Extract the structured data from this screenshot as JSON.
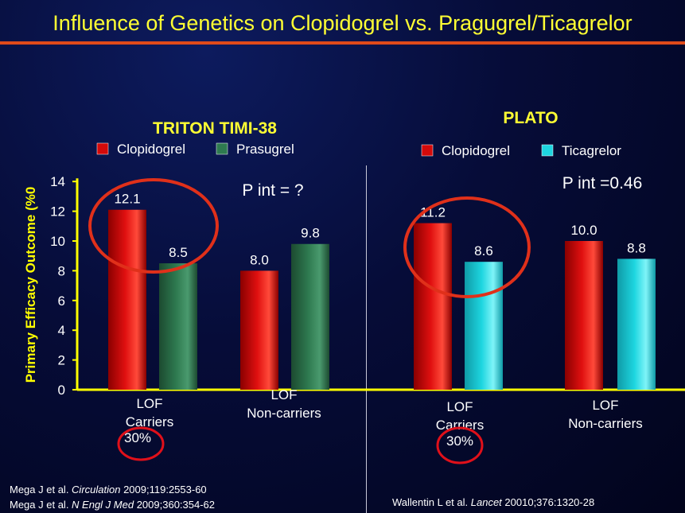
{
  "title": "Influence of Genetics on Clopidogrel vs. Pragugrel/Ticagrelor",
  "colors": {
    "title": "#ffff33",
    "clopidogrel": "#d40a0a",
    "prasugrel": "#2e7a50",
    "ticagrelor": "#1ed6e0",
    "axis": "#ffff00",
    "circle": "#e0301a"
  },
  "chart_data": [
    {
      "type": "bar",
      "title": "TRITON TIMI-38",
      "ylabel": "Primary Efficacy Outcome (%0",
      "ylim": [
        0,
        14
      ],
      "yticks": [
        0,
        2,
        4,
        6,
        8,
        10,
        12,
        14
      ],
      "categories": [
        "LOF\nCarriers",
        "LOF\nNon-carriers"
      ],
      "category_lines": [
        [
          "LOF",
          "Carriers"
        ],
        [
          "LOF",
          "Non-carriers"
        ]
      ],
      "series": [
        {
          "name": "Clopidogrel",
          "values": [
            12.1,
            8.0
          ],
          "labels": [
            "12.1",
            "8.0"
          ]
        },
        {
          "name": "Prasugrel",
          "values": [
            8.5,
            9.8
          ],
          "labels": [
            "8.5",
            "9.8"
          ]
        }
      ],
      "annotations": [
        "P int = ?",
        "30%"
      ],
      "legend": "top"
    },
    {
      "type": "bar",
      "title": "PLATO",
      "ylim": [
        0,
        14
      ],
      "categories": [
        "LOF\nCarriers",
        "LOF\nNon-carriers"
      ],
      "category_lines": [
        [
          "LOF",
          "Carriers"
        ],
        [
          "LOF",
          "Non-carriers"
        ]
      ],
      "series": [
        {
          "name": "Clopidogrel",
          "values": [
            11.2,
            10.0
          ],
          "labels": [
            "11.2",
            "10.0"
          ]
        },
        {
          "name": "Ticagrelor",
          "values": [
            8.6,
            8.8
          ],
          "labels": [
            "8.6",
            "8.8"
          ]
        }
      ],
      "annotations": [
        "P int =0.46",
        "30%"
      ],
      "legend": "top"
    }
  ],
  "references": {
    "left_1": {
      "authors": "Mega J et al. ",
      "journal": "Circulation",
      "cite": "  2009;119:2553-60"
    },
    "left_2": {
      "authors": "Mega J et al. ",
      "journal": "N Engl J Med",
      "cite": "  2009;360:354-62"
    },
    "right_1": {
      "authors": "Wallentin L et al. ",
      "journal": "Lancet",
      "cite": "  20010;376:1320-28"
    }
  }
}
